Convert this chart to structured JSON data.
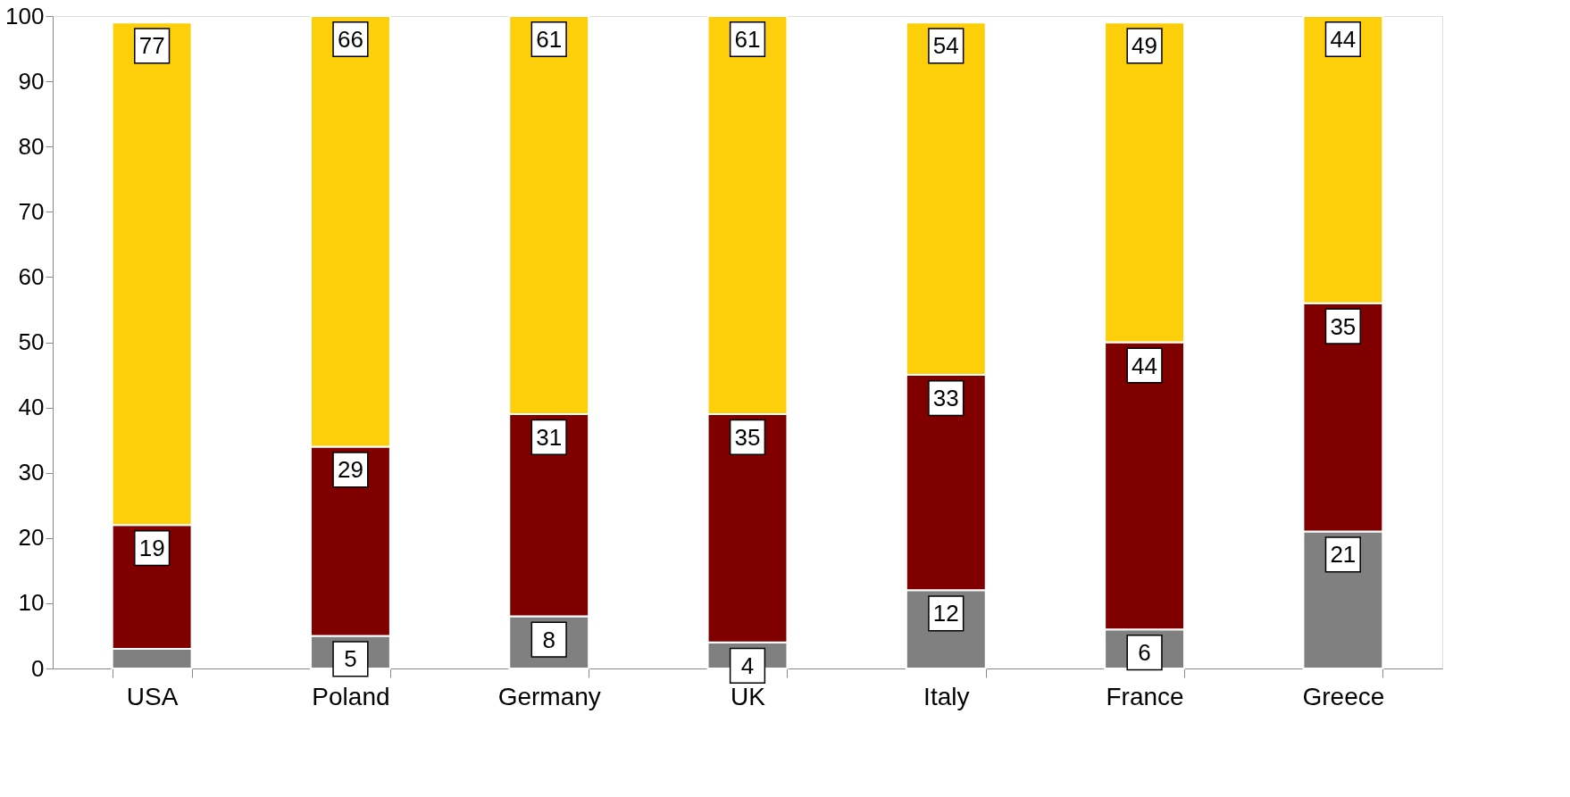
{
  "chart_data": {
    "type": "bar",
    "stacked": true,
    "categories": [
      "USA",
      "Poland",
      "Germany",
      "UK",
      "Italy",
      "France",
      "Greece"
    ],
    "series": [
      {
        "color": "#808080",
        "values": [
          3,
          5,
          8,
          4,
          12,
          6,
          21
        ],
        "value_labels": [
          null,
          "5",
          "8",
          "4",
          "12",
          "6",
          "21"
        ]
      },
      {
        "color": "#800000",
        "values": [
          19,
          29,
          31,
          35,
          33,
          44,
          35
        ],
        "value_labels": [
          "19",
          "29",
          "31",
          "35",
          "33",
          "44",
          "35"
        ]
      },
      {
        "color": "#fccf0a",
        "values": [
          77,
          66,
          61,
          61,
          54,
          49,
          44
        ],
        "value_labels": [
          "77",
          "66",
          "61",
          "61",
          "54",
          "49",
          "44"
        ]
      }
    ],
    "ylim": [
      0,
      100
    ],
    "yticks": [
      0,
      10,
      20,
      30,
      40,
      50,
      60,
      70,
      80,
      90,
      100
    ],
    "grid": false
  }
}
